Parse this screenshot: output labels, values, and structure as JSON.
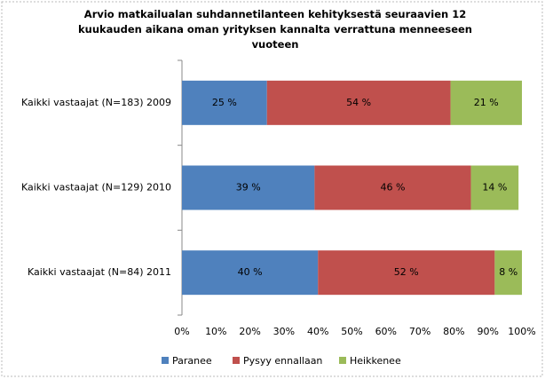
{
  "chart_data": {
    "type": "stacked_barh",
    "title": "Arvio matkailualan suhdannetilanteen kehityksestä seuraavien 12 kuukauden aikana oman yrityksen kannalta verrattuna menneeseen vuoteen",
    "categories": [
      "Kaikki vastaajat (N=183) 2009",
      "Kaikki vastaajat (N=129) 2010",
      "Kaikki vastaajat (N=84) 2011"
    ],
    "series": [
      {
        "name": "Paranee",
        "color": "#4f81bd",
        "values": [
          25,
          39,
          40
        ],
        "value_labels": [
          "25 %",
          "39 %",
          "40 %"
        ]
      },
      {
        "name": "Pysyy ennallaan",
        "color": "#c0504d",
        "values": [
          54,
          46,
          52
        ],
        "value_labels": [
          "54 %",
          "46 %",
          "52 %"
        ]
      },
      {
        "name": "Heikkenee",
        "color": "#9bbb59",
        "values": [
          21,
          14,
          8
        ],
        "value_labels": [
          "21 %",
          "14 %",
          "8 %"
        ]
      }
    ],
    "xlim": [
      0,
      100
    ],
    "xticks": [
      {
        "value": 0,
        "label": "0%"
      },
      {
        "value": 10,
        "label": "10%"
      },
      {
        "value": 20,
        "label": "20%"
      },
      {
        "value": 30,
        "label": "30%"
      },
      {
        "value": 40,
        "label": "40%"
      },
      {
        "value": 50,
        "label": "50%"
      },
      {
        "value": 60,
        "label": "60%"
      },
      {
        "value": 70,
        "label": "70%"
      },
      {
        "value": 80,
        "label": "80%"
      },
      {
        "value": 90,
        "label": "90%"
      },
      {
        "value": 100,
        "label": "100%"
      }
    ],
    "legend": "bottom"
  }
}
